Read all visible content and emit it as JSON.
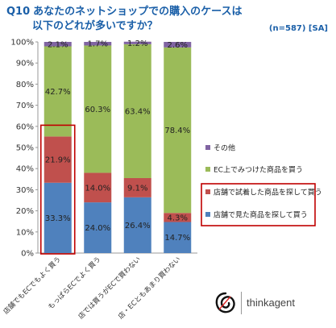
{
  "header": {
    "qnum": "Q10",
    "title_line1": "あなたのネットショップでの購入のケースは",
    "title_line2": "以下のどれが多いですか？",
    "sample": "(n=587) [SA]"
  },
  "brand": {
    "name": "thinkagent"
  },
  "chart_data": {
    "type": "bar",
    "stacked": true,
    "categories": [
      "店舗でもECでもよく買う",
      "もっぱらECでよく買う",
      "店では買うがECで買わない",
      "店・ECともあまり買わない"
    ],
    "yticks": [
      "0%",
      "10%",
      "20%",
      "30%",
      "40%",
      "50%",
      "60%",
      "70%",
      "80%",
      "90%",
      "100%"
    ],
    "ylim": [
      0,
      100
    ],
    "series": [
      {
        "name": "店舗で見た商品を探して買う",
        "color": "#4f81bd",
        "values": [
          33.3,
          24.0,
          26.4,
          14.7
        ],
        "labels": [
          "33.3%",
          "24.0%",
          "26.4%",
          "14.7%"
        ]
      },
      {
        "name": "店舗で試着した商品を探して買う",
        "color": "#c0504d",
        "values": [
          21.9,
          14.0,
          9.1,
          4.3
        ],
        "labels": [
          "21.9%",
          "14.0%",
          "9.1%",
          "4.3%"
        ]
      },
      {
        "name": "EC上でみつけた商品を買う",
        "color": "#9bbb59",
        "values": [
          42.7,
          60.3,
          63.4,
          78.4
        ],
        "labels": [
          "42.7%",
          "60.3%",
          "63.4%",
          "78.4%"
        ]
      },
      {
        "name": "その他",
        "color": "#8064a2",
        "values": [
          2.1,
          1.7,
          1.2,
          2.6
        ],
        "labels": [
          "2.1%",
          "1.7%",
          "1.2%",
          "2.6%"
        ]
      }
    ],
    "legend_order": [
      3,
      2,
      1,
      0
    ],
    "highlight_color": "#c00000",
    "grid": false,
    "legend_position": "right"
  }
}
